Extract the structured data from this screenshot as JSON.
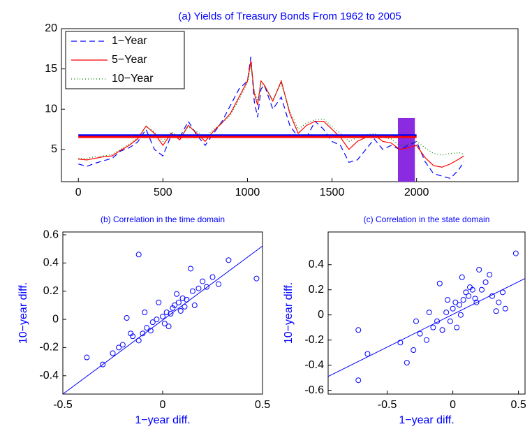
{
  "chart_data": [
    {
      "type": "line",
      "title": "(a) Yields of Treasury Bonds From 1962 to 2005",
      "x": [
        0,
        50,
        100,
        150,
        200,
        250,
        300,
        350,
        400,
        450,
        500,
        550,
        600,
        650,
        700,
        750,
        800,
        850,
        900,
        950,
        1000,
        1020,
        1040,
        1060,
        1080,
        1100,
        1150,
        1200,
        1250,
        1300,
        1350,
        1400,
        1450,
        1500,
        1550,
        1600,
        1650,
        1700,
        1750,
        1800,
        1850,
        1900,
        1950,
        2000,
        2050,
        2100,
        2150,
        2200,
        2250,
        2280
      ],
      "series": [
        {
          "name": "1−Year",
          "color": "#0000ff",
          "dash": "8,5",
          "values": [
            3.2,
            2.9,
            3.3,
            3.6,
            3.9,
            4.8,
            5.2,
            5.9,
            7.5,
            5.0,
            4.2,
            6.8,
            6.5,
            8.5,
            6.8,
            5.5,
            7.0,
            8.5,
            10.5,
            12.5,
            13.5,
            16.5,
            11,
            9,
            12.5,
            13,
            10,
            11.5,
            8,
            6.5,
            6.5,
            8.5,
            7.5,
            6,
            5.5,
            3.4,
            3.7,
            5,
            6.3,
            5,
            5.5,
            5,
            5.5,
            6,
            3.5,
            2,
            1.7,
            1.4,
            2.5,
            3.5
          ]
        },
        {
          "name": "5−Year",
          "color": "#ff0000",
          "dash": "",
          "values": [
            3.8,
            3.7,
            3.9,
            4.1,
            4.2,
            4.9,
            5.5,
            6.3,
            7.9,
            7.0,
            5.5,
            7.0,
            6.2,
            8.0,
            7.0,
            6.0,
            7.3,
            8.3,
            9.5,
            11.5,
            13.5,
            16.0,
            12,
            10.5,
            13.5,
            13,
            11,
            13.5,
            9.5,
            7,
            8,
            8.5,
            8.5,
            7.5,
            6.5,
            5,
            6,
            6.5,
            6.8,
            6,
            5.8,
            5,
            5.2,
            5.5,
            4,
            3,
            2.8,
            3.2,
            3.8,
            4.2
          ]
        },
        {
          "name": "10−Year",
          "color": "#008000",
          "dash": "1,3",
          "values": [
            3.9,
            3.9,
            4.1,
            4.2,
            4.4,
            5.0,
            5.7,
            6.4,
            7.8,
            7.2,
            6.0,
            7.2,
            6.4,
            7.8,
            7.2,
            6.5,
            7.5,
            8.3,
            9.3,
            11.2,
            13.2,
            15.5,
            12.3,
            11,
            13.3,
            12.8,
            11.2,
            13.2,
            9.8,
            7.5,
            8.3,
            8.7,
            8.8,
            7.8,
            7,
            6,
            6.5,
            6.8,
            7,
            6.5,
            6.3,
            5.5,
            5.6,
            6,
            5.2,
            4.5,
            4.3,
            4.5,
            4.6,
            4.4
          ]
        }
      ],
      "reference_lines": [
        {
          "color": "#0000ff",
          "y": 6.75,
          "x": [
            0,
            2000
          ]
        },
        {
          "color": "#ff0000",
          "y": 6.55,
          "x": [
            0,
            2000
          ]
        }
      ],
      "highlight": {
        "color": "#8a2be2",
        "x": [
          1890,
          1990
        ],
        "y": [
          1,
          8.9
        ]
      },
      "xlim": [
        -100,
        2600
      ],
      "ylim": [
        1,
        20
      ],
      "xticks": [
        0,
        500,
        1000,
        1500,
        2000
      ],
      "yticks": [
        5,
        10,
        15,
        20
      ],
      "legend": "top-left"
    },
    {
      "type": "scatter",
      "title": "(b) Correlation in the time domain",
      "x_label": "1−year diff.",
      "y_label": "10−year diff.",
      "color": "#0000ff",
      "x": [
        -0.12,
        0.47,
        -0.38,
        0.33,
        -0.3,
        -0.25,
        -0.2,
        -0.18,
        -0.15,
        -0.1,
        -0.08,
        -0.05,
        -0.03,
        0,
        0.02,
        0.04,
        0.06,
        0.08,
        0.1,
        0.12,
        0.15,
        0.18,
        0.2,
        0.22,
        0.25,
        -0.22,
        -0.12,
        -0.06,
        0.01,
        0.05,
        0.09,
        0.14,
        -0.02,
        0.03,
        -0.09,
        0.07,
        0.11,
        -0.16,
        0.16,
        0.28
      ],
      "y": [
        0.46,
        0.29,
        -0.27,
        0.42,
        -0.32,
        -0.24,
        -0.18,
        0.01,
        -0.12,
        -0.1,
        -0.06,
        -0.02,
        0,
        0.02,
        0.05,
        0.04,
        0.1,
        0.12,
        0.15,
        0.14,
        0.2,
        0.22,
        0.27,
        0.23,
        0.3,
        -0.2,
        -0.15,
        -0.08,
        -0.03,
        0.08,
        0.06,
        0.36,
        0.12,
        -0.05,
        0.05,
        0.18,
        0.09,
        -0.1,
        0.1,
        0.25
      ],
      "fit_line": {
        "x": [
          -0.5,
          0.5
        ],
        "y": [
          -0.53,
          0.52
        ]
      },
      "xlim": [
        -0.5,
        0.5
      ],
      "ylim": [
        -0.53,
        0.62
      ],
      "xticks": [
        -0.5,
        0,
        0.5
      ],
      "yticks": [
        -0.4,
        -0.2,
        0,
        0.2,
        0.4,
        0.6
      ]
    },
    {
      "type": "scatter",
      "title": "(c) Correlation in the state domain",
      "x_label": "1−year diff.",
      "y_label": "10−year diff.",
      "color": "#0000ff",
      "x": [
        -0.72,
        -0.72,
        -0.65,
        0.48,
        -0.35,
        -0.4,
        -0.3,
        -0.25,
        -0.2,
        -0.15,
        -0.12,
        -0.08,
        -0.05,
        -0.02,
        0,
        0.02,
        0.05,
        0.08,
        0.1,
        0.12,
        0.15,
        0.18,
        0.2,
        0.25,
        0.3,
        0.35,
        0.4,
        -0.18,
        -0.1,
        0.03,
        0.07,
        0.22,
        0.28,
        0.33,
        -0.28,
        0.13,
        -0.04,
        0.17,
        0.38,
        0.06
      ],
      "y": [
        -0.12,
        -0.52,
        -0.31,
        0.49,
        -0.38,
        -0.22,
        -0.28,
        -0.15,
        -0.2,
        -0.1,
        -0.05,
        -0.12,
        0.02,
        -0.05,
        0.05,
        0.1,
        0.08,
        0.12,
        0.18,
        0.15,
        0.2,
        0.1,
        0.36,
        0.26,
        0.15,
        0.1,
        0.05,
        0.02,
        0.25,
        -0.1,
        0.3,
        0.2,
        0.32,
        0.03,
        -0.05,
        0.22,
        0.12,
        0.13,
        0.18,
        0.0
      ],
      "fit_line": {
        "x": [
          -0.95,
          0.55
        ],
        "y": [
          -0.49,
          0.29
        ]
      },
      "xlim": [
        -0.95,
        0.55
      ],
      "ylim": [
        -0.63,
        0.66
      ],
      "xticks": [
        -0.5,
        0,
        0.5
      ],
      "yticks": [
        -0.6,
        -0.4,
        -0.2,
        0,
        0.2,
        0.4
      ]
    }
  ]
}
